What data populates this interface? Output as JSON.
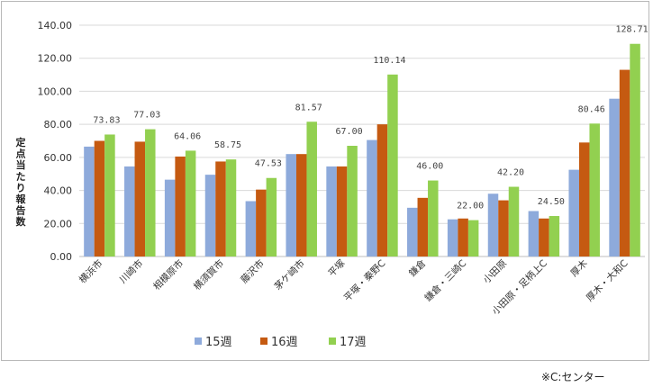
{
  "chart_data": {
    "type": "bar",
    "ylabel": "定点当たり報告数",
    "ylim": [
      0,
      140
    ],
    "yticks": [
      "0.00",
      "20.00",
      "40.00",
      "60.00",
      "80.00",
      "100.00",
      "120.00",
      "140.00"
    ],
    "grid": true,
    "legend_position": "bottom",
    "categories": [
      "横浜市",
      "川崎市",
      "相模原市",
      "横須賀市",
      "藤沢市",
      "茅ケ崎市",
      "平塚",
      "平塚・秦野C",
      "鎌倉",
      "鎌倉・三崎C",
      "小田原",
      "小田原・足柄上C",
      "厚木",
      "厚木・大和C"
    ],
    "series": [
      {
        "name": "15週",
        "color": "#8eaadb",
        "values": [
          66.5,
          54.5,
          46.5,
          49.5,
          33.5,
          62.0,
          54.5,
          70.5,
          29.5,
          22.5,
          38.0,
          27.5,
          52.5,
          95.5
        ]
      },
      {
        "name": "16週",
        "color": "#c55a11",
        "values": [
          70.0,
          69.5,
          60.5,
          57.5,
          40.5,
          62.0,
          54.5,
          80.0,
          35.5,
          23.0,
          34.0,
          23.0,
          69.0,
          113.0
        ]
      },
      {
        "name": "17週",
        "color": "#92d050",
        "values": [
          73.83,
          77.03,
          64.06,
          58.75,
          47.53,
          81.57,
          67.0,
          110.14,
          46.0,
          22.0,
          42.2,
          24.5,
          80.46,
          128.71
        ]
      }
    ],
    "data_labels": [
      "73.83",
      "77.03",
      "64.06",
      "58.75",
      "47.53",
      "81.57",
      "67.00",
      "110.14",
      "46.00",
      "22.00",
      "42.20",
      "24.50",
      "80.46",
      "128.71"
    ]
  },
  "footnote": "※C:センター"
}
